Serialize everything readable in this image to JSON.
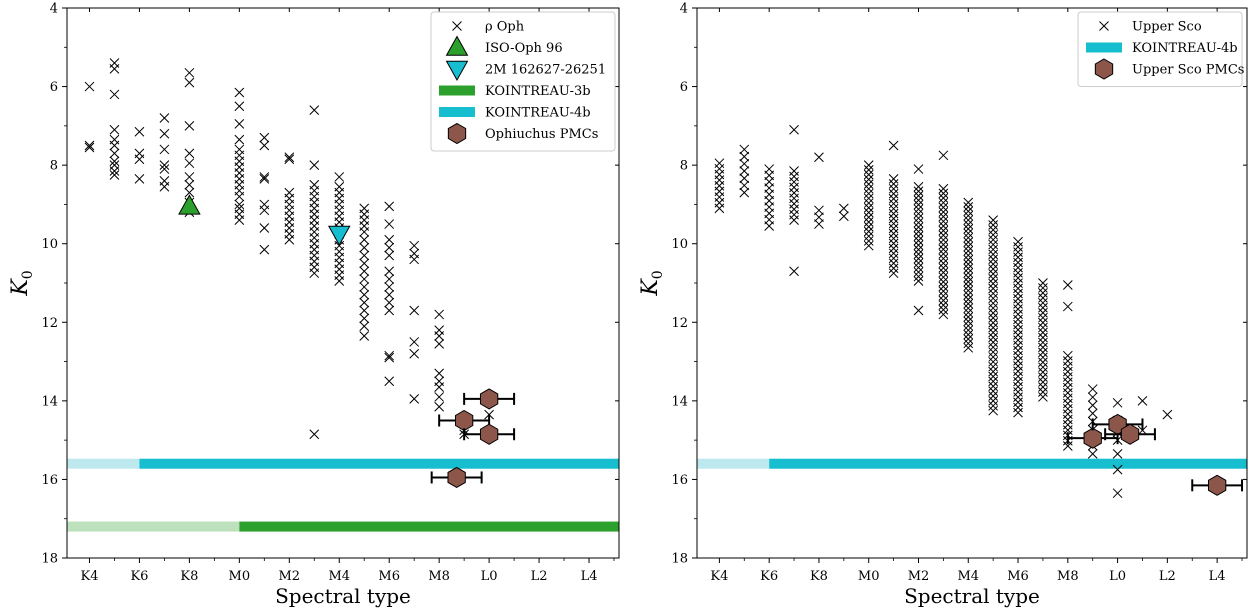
{
  "chart_data": [
    {
      "type": "scatter",
      "panel": "left",
      "xlabel": "Spectral type",
      "ylabel": "K",
      "ylabel_sub": "0",
      "xlim": [
        -0.9,
        21.2
      ],
      "ylim": [
        18,
        4
      ],
      "x_ticks": [
        "K4",
        "K6",
        "K8",
        "M0",
        "M2",
        "M4",
        "M6",
        "M8",
        "L0",
        "L2",
        "L4"
      ],
      "x_tick_values": [
        0,
        2,
        4,
        6,
        8,
        10,
        12,
        14,
        16,
        18,
        20
      ],
      "y_ticks": [
        4,
        6,
        8,
        10,
        12,
        14,
        16,
        18
      ],
      "legend": [
        {
          "label": "ρ Oph",
          "marker": "x",
          "color": "#000000"
        },
        {
          "label": "ISO-Oph 96",
          "marker": "triangle-up",
          "color": "#2ca02c"
        },
        {
          "label": "2M 162627-26251",
          "marker": "triangle-down",
          "color": "#17becf"
        },
        {
          "label": "KOINTREAU-3b",
          "marker": "band",
          "color": "#2ca02c"
        },
        {
          "label": "KOINTREAU-4b",
          "marker": "band",
          "color": "#17becf"
        },
        {
          "label": "Ophiuchus PMCs",
          "marker": "hexagon",
          "color": "#8c564b"
        }
      ],
      "scatter": [
        {
          "x": 0,
          "ys": [
            6.0,
            7.5,
            7.55
          ]
        },
        {
          "x": 1,
          "ys": [
            5.4,
            5.55,
            6.2,
            7.1,
            7.35,
            7.5,
            7.7,
            7.9,
            8.0,
            8.15,
            8.25
          ]
        },
        {
          "x": 2,
          "ys": [
            7.15,
            7.7,
            7.85,
            8.35
          ]
        },
        {
          "x": 3,
          "ys": [
            6.8,
            7.2,
            7.6,
            8.0,
            8.1,
            8.4,
            8.55
          ]
        },
        {
          "x": 4,
          "ys": [
            5.65,
            5.9,
            7.0,
            7.7,
            7.95,
            8.3,
            8.5,
            8.7,
            8.95,
            9.2
          ]
        },
        {
          "x": 6,
          "ys": [
            6.15,
            6.5,
            6.95,
            7.35,
            7.6,
            7.75,
            7.9,
            8.05,
            8.2,
            8.35,
            8.5,
            8.65,
            8.8,
            9.0,
            9.1,
            9.25,
            9.4
          ]
        },
        {
          "x": 7,
          "ys": [
            7.3,
            7.5,
            8.3,
            8.35,
            9.0,
            9.15,
            9.6,
            10.15
          ]
        },
        {
          "x": 8,
          "ys": [
            7.8,
            7.85,
            8.7,
            8.85,
            9.0,
            9.15,
            9.3,
            9.45,
            9.6,
            9.75,
            9.9
          ]
        },
        {
          "x": 9,
          "ys": [
            6.6,
            8.0,
            8.5,
            8.65,
            8.8,
            8.95,
            9.1,
            9.25,
            9.4,
            9.55,
            9.7,
            9.85,
            10.0,
            10.15,
            10.3,
            10.45,
            10.6,
            10.75,
            14.85
          ]
        },
        {
          "x": 10,
          "ys": [
            8.3,
            8.55,
            8.7,
            8.85,
            9.0,
            9.15,
            9.3,
            9.45,
            9.6,
            9.75,
            9.9,
            10.05,
            10.2,
            10.35,
            10.5,
            10.65,
            10.8,
            10.95
          ]
        },
        {
          "x": 11,
          "ys": [
            9.1,
            9.25,
            9.4,
            9.55,
            9.7,
            9.9,
            10.1,
            10.3,
            10.5,
            10.7,
            10.9,
            11.1,
            11.3,
            11.5,
            11.7,
            11.9,
            12.1,
            12.35
          ]
        },
        {
          "x": 12,
          "ys": [
            9.05,
            9.5,
            9.9,
            10.1,
            10.3,
            10.7,
            10.9,
            11.1,
            11.3,
            11.5,
            11.7,
            12.85,
            12.9,
            13.5
          ]
        },
        {
          "x": 13,
          "ys": [
            10.05,
            10.25,
            10.4,
            11.7,
            12.5,
            12.8,
            13.95
          ]
        },
        {
          "x": 14,
          "ys": [
            11.8,
            12.2,
            12.35,
            12.55,
            13.3,
            13.5,
            13.65,
            13.9,
            14.15
          ]
        },
        {
          "x": 15,
          "ys": [
            14.55,
            14.75,
            14.85
          ]
        },
        {
          "x": 16,
          "ys": [
            14.35
          ]
        }
      ],
      "highlights": [
        {
          "name": "ISO-Oph 96",
          "marker": "triangle-up",
          "x": 4,
          "y": 9.05,
          "color": "#2ca02c"
        },
        {
          "name": "2M 162627-26251",
          "marker": "triangle-down",
          "x": 10,
          "y": 9.75,
          "color": "#17becf"
        }
      ],
      "pmcs": [
        {
          "x": 16.0,
          "y": 13.95,
          "xerr": 1.0
        },
        {
          "x": 15.0,
          "y": 14.5,
          "xerr": 1.0
        },
        {
          "x": 16.0,
          "y": 14.85,
          "xerr": 1.0
        },
        {
          "x": 14.7,
          "y": 15.95,
          "xerr": 1.0
        }
      ],
      "bands": [
        {
          "name": "KOINTREAU-4b",
          "y": 15.6,
          "x_light_start": -0.9,
          "x_dark_start": 2.0,
          "color": "#17becf",
          "light_color": "#bde8ee"
        },
        {
          "name": "KOINTREAU-3b",
          "y": 17.2,
          "x_light_start": -0.9,
          "x_dark_start": 6.0,
          "color": "#2ca02c",
          "light_color": "#bde0bd"
        }
      ]
    },
    {
      "type": "scatter",
      "panel": "right",
      "xlabel": "Spectral type",
      "ylabel": "K",
      "ylabel_sub": "0",
      "xlim": [
        -0.9,
        21.2
      ],
      "ylim": [
        18,
        4
      ],
      "x_ticks": [
        "K4",
        "K6",
        "K8",
        "M0",
        "M2",
        "M4",
        "M6",
        "M8",
        "L0",
        "L2",
        "L4"
      ],
      "x_tick_values": [
        0,
        2,
        4,
        6,
        8,
        10,
        12,
        14,
        16,
        18,
        20
      ],
      "y_ticks": [
        4,
        6,
        8,
        10,
        12,
        14,
        16,
        18
      ],
      "legend": [
        {
          "label": "Upper Sco",
          "marker": "x",
          "color": "#000000"
        },
        {
          "label": "KOINTREAU-4b",
          "marker": "band",
          "color": "#17becf"
        },
        {
          "label": "Upper Sco PMCs",
          "marker": "hexagon",
          "color": "#8c564b"
        }
      ],
      "scatter_ranges": [
        {
          "x": 0,
          "y_min": 7.95,
          "y_max": 9.1,
          "n": 9
        },
        {
          "x": 1,
          "y_min": 7.6,
          "y_max": 8.7,
          "n": 7
        },
        {
          "x": 2,
          "y_min": 8.1,
          "y_max": 9.55,
          "n": 10
        },
        {
          "x": 3,
          "y_min": 8.15,
          "y_max": 9.4,
          "n": 10
        },
        {
          "x": 4,
          "y_min": 9.15,
          "y_max": 9.5,
          "n": 3
        },
        {
          "x": 5,
          "y_min": 9.1,
          "y_max": 9.3,
          "n": 2
        },
        {
          "x": 6,
          "y_min": 8.0,
          "y_max": 10.05,
          "n": 18
        },
        {
          "x": 7,
          "y_min": 8.35,
          "y_max": 10.75,
          "n": 20
        },
        {
          "x": 8,
          "y_min": 8.55,
          "y_max": 10.95,
          "n": 22
        },
        {
          "x": 9,
          "y_min": 8.6,
          "y_max": 11.8,
          "n": 28
        },
        {
          "x": 10,
          "y_min": 8.95,
          "y_max": 12.65,
          "n": 34
        },
        {
          "x": 11,
          "y_min": 9.4,
          "y_max": 14.25,
          "n": 40
        },
        {
          "x": 12,
          "y_min": 9.95,
          "y_max": 14.3,
          "n": 34
        },
        {
          "x": 13,
          "y_min": 11.0,
          "y_max": 13.9,
          "n": 24
        },
        {
          "x": 14,
          "y_min": 12.85,
          "y_max": 15.15,
          "n": 18
        },
        {
          "x": 15,
          "y_min": 13.7,
          "y_max": 15.35,
          "n": 9
        }
      ],
      "scatter": [
        {
          "x": 3,
          "ys": [
            7.1,
            10.7
          ]
        },
        {
          "x": 4,
          "ys": [
            7.8
          ]
        },
        {
          "x": 7,
          "ys": [
            7.5
          ]
        },
        {
          "x": 8,
          "ys": [
            8.1,
            11.7
          ]
        },
        {
          "x": 9,
          "ys": [
            7.75
          ]
        },
        {
          "x": 14,
          "ys": [
            11.05,
            11.6
          ]
        },
        {
          "x": 16,
          "ys": [
            14.05,
            14.5,
            14.8,
            15.0,
            15.35,
            15.75,
            16.35
          ]
        },
        {
          "x": 17,
          "ys": [
            14.0,
            14.75
          ]
        },
        {
          "x": 18,
          "ys": [
            14.35
          ]
        }
      ],
      "pmcs": [
        {
          "x": 15.0,
          "y": 14.95,
          "xerr": 1.0
        },
        {
          "x": 16.0,
          "y": 14.6,
          "xerr": 1.0
        },
        {
          "x": 16.5,
          "y": 14.85,
          "xerr": 1.0
        },
        {
          "x": 20.0,
          "y": 16.15,
          "xerr": 1.0
        }
      ],
      "bands": [
        {
          "name": "KOINTREAU-4b",
          "y": 15.6,
          "x_light_start": -0.9,
          "x_dark_start": 2.0,
          "color": "#17becf",
          "light_color": "#bde8ee"
        }
      ]
    }
  ]
}
